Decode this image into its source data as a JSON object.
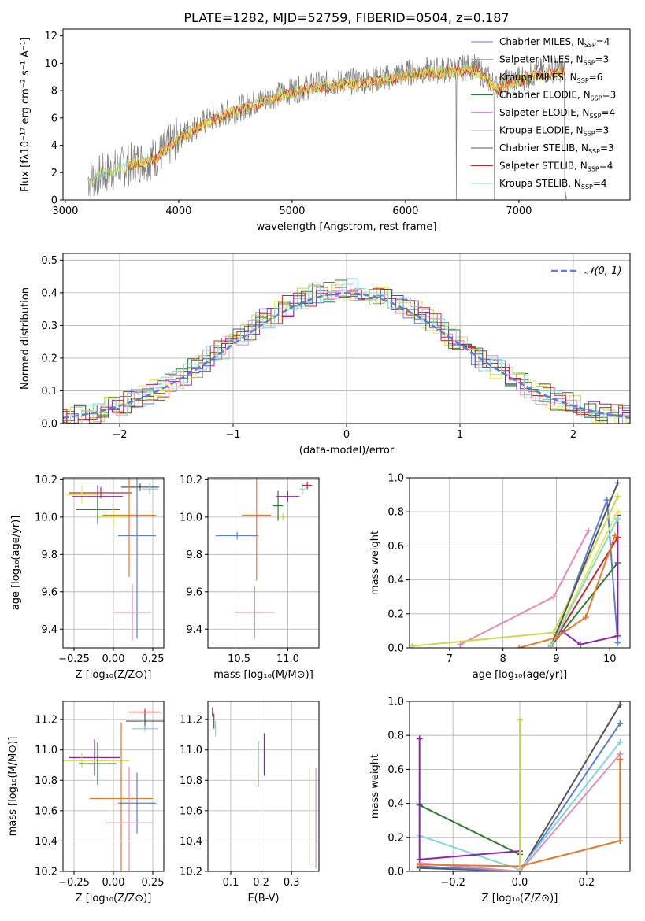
{
  "title": "PLATE=1282, MJD=52759, FIBERID=0504, z=0.187",
  "colors": {
    "Chabrier MILES": "#5b7fd6",
    "Salpeter MILES": "#e88ab4",
    "Kroupa MILES": "#c9d94c",
    "Chabrier ELODIE": "#2e7d32",
    "Salpeter ELODIE": "#8e24aa",
    "Kroupa ELODIE": "#e6e84f",
    "Chabrier STELIB": "#555555",
    "Salpeter STELIB": "#c62828",
    "Kroupa STELIB": "#7fd8dc",
    "orange": "#e6782a",
    "gray_spec": "#808080",
    "gauss": "#5b7fd6"
  },
  "chart_data": [
    {
      "id": "spectrum",
      "type": "line",
      "title": "PLATE=1282, MJD=52759, FIBERID=0504, z=0.187",
      "xlabel": "wavelength [Angstrom, rest frame]",
      "ylabel": "Flux [fλ10⁻¹⁷ erg cm⁻² s⁻¹ A⁻¹]",
      "xlim": [
        2980,
        7980
      ],
      "ylim": [
        0,
        12.5
      ],
      "xticks": [
        "3000",
        "4000",
        "5000",
        "6000",
        "7000"
      ],
      "yticks": [
        "0",
        "2",
        "4",
        "6",
        "8",
        "10",
        "12"
      ],
      "legend_position": "top-right",
      "legend": [
        {
          "text": "Chabrier MILES, N",
          "sub": "SSP",
          "tail": "=4"
        },
        {
          "text": "Salpeter MILES, N",
          "sub": "SSP",
          "tail": "=3"
        },
        {
          "text": "Kroupa MILES, N",
          "sub": "SSP",
          "tail": "=6"
        },
        {
          "text": "Chabrier ELODIE, N",
          "sub": "SSP",
          "tail": "=3"
        },
        {
          "text": "Salpeter ELODIE, N",
          "sub": "SSP",
          "tail": "=4"
        },
        {
          "text": "Kroupa ELODIE, N",
          "sub": "SSP",
          "tail": "=3"
        },
        {
          "text": "Chabrier STELIB, N",
          "sub": "SSP",
          "tail": "=3"
        },
        {
          "text": "Salpeter STELIB, N",
          "sub": "SSP",
          "tail": "=4"
        },
        {
          "text": "Kroupa STELIB, N",
          "sub": "SSP",
          "tail": "=4"
        }
      ],
      "continuum": {
        "x": [
          3200,
          3400,
          3600,
          3800,
          4000,
          4200,
          4400,
          4600,
          4800,
          5000,
          5200,
          5400,
          5600,
          5800,
          6000,
          6200,
          6400,
          6600,
          6800,
          7000,
          7200,
          7400
        ],
        "y": [
          1.5,
          2.1,
          2.7,
          3.1,
          4.6,
          5.6,
          6.3,
          6.9,
          7.5,
          8.0,
          8.4,
          8.6,
          8.7,
          8.9,
          9.3,
          9.5,
          9.5,
          9.8,
          8.3,
          8.9,
          9.4,
          9.6
        ]
      }
    },
    {
      "id": "residuals",
      "type": "line",
      "xlabel": "(data-model)/error",
      "ylabel": "Normed distribution",
      "xlim": [
        -2.5,
        2.5
      ],
      "ylim": [
        0,
        0.52
      ],
      "xticks": [
        "−2",
        "−1",
        "0",
        "1",
        "2"
      ],
      "yticks": [
        "0.0",
        "0.1",
        "0.2",
        "0.3",
        "0.4",
        "0.5"
      ],
      "gauss_label": "𝒩(0, 1)",
      "legend_position": "top-right"
    },
    {
      "id": "age_Z",
      "type": "scatter",
      "xlabel": "Z [log₁₀(Z/Z⊙)]",
      "ylabel": "age  [log₁₀(age/yr)]",
      "xlim": [
        -0.32,
        0.32
      ],
      "ylim": [
        9.3,
        10.21
      ],
      "xticks": [
        "−0.25",
        "0.00",
        "0.25"
      ],
      "yticks": [
        "9.4",
        "9.6",
        "9.8",
        "10.0",
        "10.2"
      ]
    },
    {
      "id": "age_mass",
      "type": "scatter",
      "xlabel": "mass [log₁₀(M/M⊙)]",
      "xlim": [
        10.18,
        11.32
      ],
      "ylim": [
        9.3,
        10.21
      ],
      "xticks": [
        "10.5",
        "11.0"
      ],
      "yticks": [
        "9.4",
        "9.6",
        "9.8",
        "10.0",
        "10.2"
      ]
    },
    {
      "id": "weight_age",
      "type": "line",
      "xlabel": "age  [log₁₀(age/yr)]",
      "ylabel": "mass weight",
      "xlim": [
        6.25,
        10.38
      ],
      "ylim": [
        0,
        1.0
      ],
      "xticks": [
        "7",
        "8",
        "9",
        "10"
      ],
      "yticks": [
        "0.0",
        "0.2",
        "0.4",
        "0.6",
        "0.8",
        "1.0"
      ],
      "series": [
        {
          "key": "Chabrier MILES",
          "x": [
            8.9,
            9.0,
            9.95,
            10.15
          ],
          "y": [
            0.02,
            0.08,
            0.87,
            0.03
          ]
        },
        {
          "key": "Salpeter MILES",
          "x": [
            7.2,
            8.95,
            9.6
          ],
          "y": [
            0.02,
            0.3,
            0.69
          ]
        },
        {
          "key": "Kroupa MILES",
          "x": [
            6.3,
            8.95,
            10.15
          ],
          "y": [
            0.01,
            0.09,
            0.89
          ]
        },
        {
          "key": "Chabrier ELODIE",
          "x": [
            8.9,
            10.15
          ],
          "y": [
            0.01,
            0.5
          ]
        },
        {
          "key": "Salpeter ELODIE",
          "x": [
            9.1,
            9.45,
            10.15,
            10.15
          ],
          "y": [
            0.1,
            0.02,
            0.07,
            0.78
          ]
        },
        {
          "key": "Kroupa ELODIE",
          "x": [
            8.9,
            10.15
          ],
          "y": [
            0.02,
            0.8
          ]
        },
        {
          "key": "Chabrier STELIB",
          "x": [
            8.9,
            10.15
          ],
          "y": [
            0.01,
            0.97
          ]
        },
        {
          "key": "Salpeter STELIB",
          "x": [
            8.9,
            10.15
          ],
          "y": [
            0.01,
            0.65
          ]
        },
        {
          "key": "Kroupa STELIB",
          "x": [
            8.9,
            10.15
          ],
          "y": [
            0.01,
            0.76
          ]
        },
        {
          "key": "orange",
          "x": [
            8.3,
            9.0,
            9.55,
            10.1
          ],
          "y": [
            0.0,
            0.06,
            0.18,
            0.66
          ]
        }
      ]
    },
    {
      "id": "mass_Z",
      "type": "scatter",
      "xlabel": "Z [log₁₀(Z/Z⊙)]",
      "ylabel": "mass [log₁₀(M/M⊙)]",
      "xlim": [
        -0.32,
        0.32
      ],
      "ylim": [
        10.2,
        11.32
      ],
      "xticks": [
        "−0.25",
        "0.00",
        "0.25"
      ],
      "yticks": [
        "10.2",
        "10.4",
        "10.6",
        "10.8",
        "11.0",
        "11.2"
      ]
    },
    {
      "id": "mass_ebv",
      "type": "scatter",
      "xlabel": "E(B-V)",
      "xlim": [
        0.025,
        0.39
      ],
      "ylim": [
        10.2,
        11.32
      ],
      "xticks": [
        "0.1",
        "0.2",
        "0.3"
      ],
      "yticks": [
        "10.2",
        "10.4",
        "10.6",
        "10.8",
        "11.0",
        "11.2"
      ]
    },
    {
      "id": "weight_Z",
      "type": "line",
      "xlabel": "Z [log₁₀(Z/Z⊙)]",
      "ylabel": "mass weight",
      "xlim": [
        -0.33,
        0.33
      ],
      "ylim": [
        0,
        1.0
      ],
      "xticks": [
        "−0.2",
        "0.0",
        "0.2"
      ],
      "yticks": [
        "0.0",
        "0.2",
        "0.4",
        "0.6",
        "0.8",
        "1.0"
      ],
      "series": [
        {
          "key": "Chabrier STELIB",
          "x": [
            -0.3,
            0.0,
            0.3
          ],
          "y": [
            0.02,
            0.0,
            0.98
          ]
        },
        {
          "key": "Chabrier MILES",
          "x": [
            -0.3,
            0.0,
            0.3
          ],
          "y": [
            0.03,
            0.0,
            0.87
          ]
        },
        {
          "key": "Kroupa STELIB",
          "x": [
            -0.3,
            0.0,
            0.3
          ],
          "y": [
            0.21,
            0.01,
            0.76
          ]
        },
        {
          "key": "Salpeter MILES",
          "x": [
            -0.3,
            0.0,
            0.3
          ],
          "y": [
            0.05,
            0.0,
            0.69
          ]
        },
        {
          "key": "Chabrier ELODIE",
          "x": [
            -0.3,
            0.0
          ],
          "y": [
            0.39,
            0.1
          ]
        },
        {
          "key": "Salpeter ELODIE",
          "x": [
            -0.3,
            -0.3,
            0.0,
            0.0
          ],
          "y": [
            0.78,
            0.07,
            0.12,
            0.0
          ]
        },
        {
          "key": "orange",
          "x": [
            -0.3,
            0.0,
            0.3,
            0.3
          ],
          "y": [
            0.04,
            0.03,
            0.18,
            0.66
          ]
        },
        {
          "key": "Kroupa MILES",
          "x": [
            0.0,
            0.0
          ],
          "y": [
            0.0,
            0.89
          ]
        }
      ]
    }
  ]
}
